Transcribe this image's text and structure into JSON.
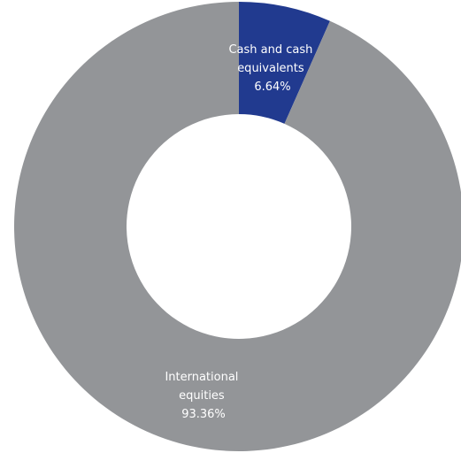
{
  "chart_data": {
    "type": "pie",
    "donut": true,
    "slices": [
      {
        "label_lines": [
          "Cash and cash",
          "equivalents"
        ],
        "value_text": "6.64%",
        "value": 6.64,
        "color": "#213a8f"
      },
      {
        "label_lines": [
          "International",
          "equities"
        ],
        "value_text": "93.36%",
        "value": 93.36,
        "color": "#939598"
      }
    ]
  }
}
